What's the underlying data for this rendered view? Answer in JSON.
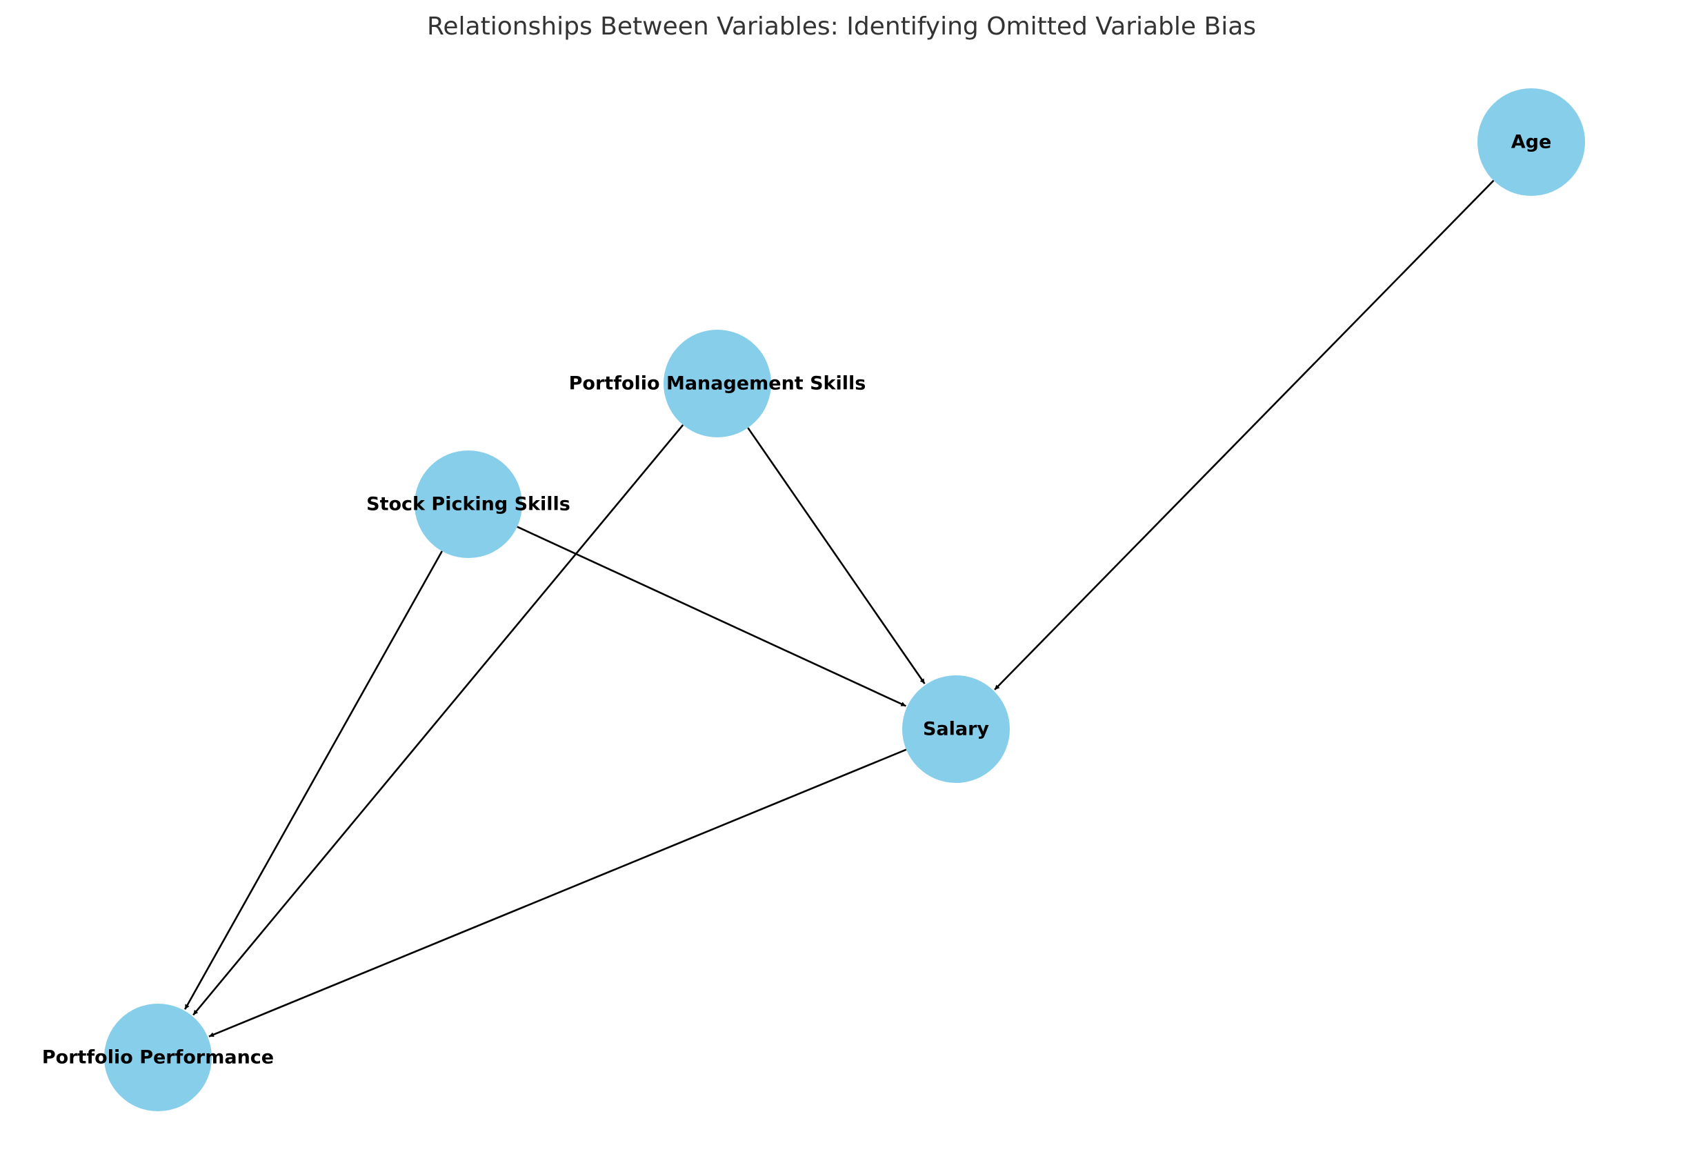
{
  "title": "Relationships Between Variables: Identifying Omitted Variable Bias",
  "colors": {
    "node_fill": "#87ceeb",
    "edge": "#000000",
    "label": "#000000",
    "title": "#333333"
  },
  "nodes": [
    {
      "id": "age",
      "label": "Age"
    },
    {
      "id": "pm_skills",
      "label": "Portfolio Management Skills"
    },
    {
      "id": "sp_skills",
      "label": "Stock Picking Skills"
    },
    {
      "id": "salary",
      "label": "Salary"
    },
    {
      "id": "performance",
      "label": "Portfolio Performance"
    }
  ],
  "edges": [
    {
      "from": "age",
      "to": "salary"
    },
    {
      "from": "pm_skills",
      "to": "salary"
    },
    {
      "from": "pm_skills",
      "to": "performance"
    },
    {
      "from": "sp_skills",
      "to": "salary"
    },
    {
      "from": "sp_skills",
      "to": "performance"
    },
    {
      "from": "salary",
      "to": "performance"
    }
  ]
}
